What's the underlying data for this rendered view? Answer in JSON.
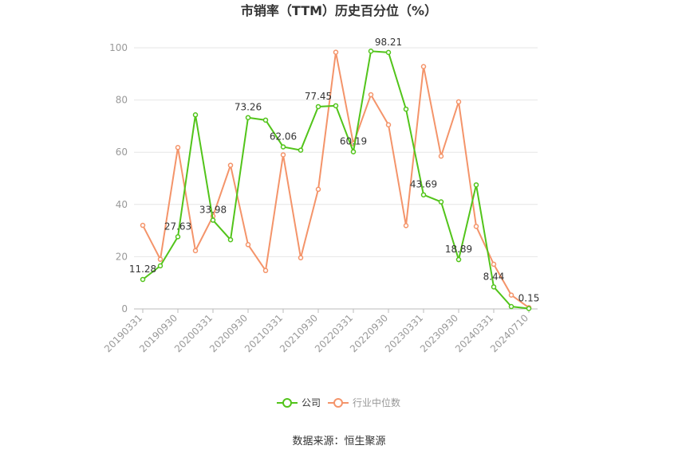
{
  "chart_data": {
    "type": "line",
    "title": "市销率（TTM）历史百分位（%）",
    "source": "数据来源：恒生聚源",
    "xlabel": "",
    "ylabel": "",
    "ylim": [
      0,
      100
    ],
    "yticks": [
      "0",
      "20",
      "40",
      "60",
      "80",
      "100"
    ],
    "x": [
      "20190331",
      "20190630",
      "20190930",
      "20191231",
      "20200331",
      "20200630",
      "20200930",
      "20201231",
      "20210331",
      "20210630",
      "20210930",
      "20211231",
      "20220331",
      "20220630",
      "20220930",
      "20221231",
      "20230331",
      "20230630",
      "20230930",
      "20231231",
      "20240331",
      "20240630",
      "20240710"
    ],
    "xtick_labels": [
      "20190331",
      "20190930",
      "20200331",
      "20200930",
      "20210331",
      "20210930",
      "20220331",
      "20220930",
      "20230331",
      "20230930",
      "20240331",
      "20240710"
    ],
    "grid": true,
    "legend_position": "bottom",
    "series": [
      {
        "name": "公司",
        "color": "#52c41a",
        "values": [
          11.28,
          16.5,
          27.63,
          74.3,
          33.98,
          26.5,
          73.26,
          72.3,
          62.06,
          60.8,
          77.45,
          77.8,
          60.19,
          98.7,
          98.21,
          76.5,
          43.69,
          41.0,
          18.89,
          47.5,
          8.44,
          0.9,
          0.15
        ],
        "labels": [
          "11.28",
          "",
          "27.63",
          "",
          "33.98",
          "",
          "73.26",
          "",
          "62.06",
          "",
          "77.45",
          "",
          "60.19",
          "",
          "98.21",
          "",
          "43.69",
          "",
          "18.89",
          "",
          "8.44",
          "",
          "0.15"
        ]
      },
      {
        "name": "行业中位数",
        "color": "#f4946a",
        "values": [
          32.0,
          19.0,
          61.8,
          22.3,
          35.5,
          55.0,
          24.6,
          14.7,
          59.0,
          19.6,
          45.8,
          98.3,
          63.3,
          82.0,
          70.5,
          31.9,
          92.8,
          58.5,
          79.3,
          31.6,
          17.1,
          5.3,
          0.5
        ]
      }
    ]
  }
}
